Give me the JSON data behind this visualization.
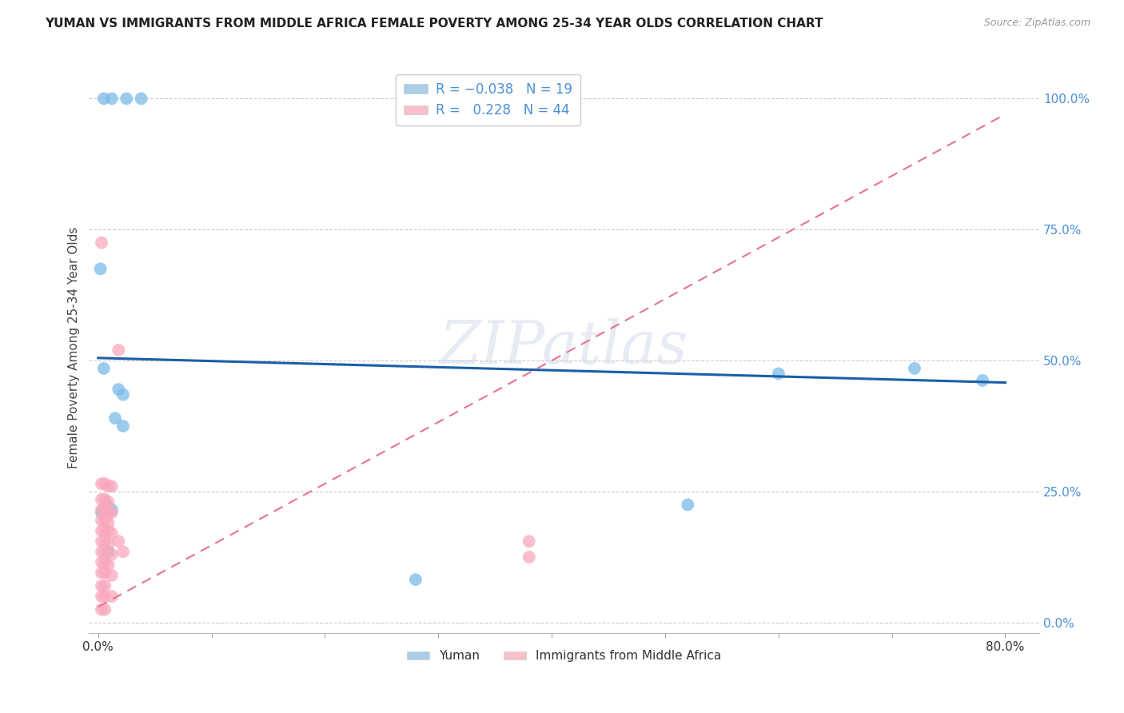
{
  "title": "YUMAN VS IMMIGRANTS FROM MIDDLE AFRICA FEMALE POVERTY AMONG 25-34 YEAR OLDS CORRELATION CHART",
  "source": "Source: ZipAtlas.com",
  "ylabel": "Female Poverty Among 25-34 Year Olds",
  "xlim": [
    -0.008,
    0.83
  ],
  "ylim": [
    -0.02,
    1.07
  ],
  "yticks": [
    0.0,
    0.25,
    0.5,
    0.75,
    1.0
  ],
  "ytick_labels": [
    "0.0%",
    "25.0%",
    "50.0%",
    "75.0%",
    "100.0%"
  ],
  "xticks": [
    0.0,
    0.1,
    0.2,
    0.3,
    0.4,
    0.5,
    0.6,
    0.7,
    0.8
  ],
  "xtick_labels": [
    "0.0%",
    "",
    "",
    "",
    "",
    "",
    "",
    "",
    "80.0%"
  ],
  "yuman_color": "#7bbce8",
  "immigrants_color": "#f9a8bc",
  "yuman_line_color": "#1a5fa8",
  "immigrants_line_color": "#e8748c",
  "yuman_legend_color": "#aacde8",
  "immigrants_legend_color": "#f9c0cc",
  "watermark": "ZIPatlas",
  "yuman_line": [
    0.0,
    0.505,
    0.8,
    0.458
  ],
  "immigrants_line": [
    0.0,
    0.03,
    0.8,
    0.97
  ],
  "yuman_points": [
    [
      0.005,
      1.0
    ],
    [
      0.012,
      1.0
    ],
    [
      0.025,
      1.0
    ],
    [
      0.038,
      1.0
    ],
    [
      0.002,
      0.675
    ],
    [
      0.018,
      0.445
    ],
    [
      0.022,
      0.435
    ],
    [
      0.015,
      0.39
    ],
    [
      0.022,
      0.375
    ],
    [
      0.005,
      0.485
    ],
    [
      0.6,
      0.475
    ],
    [
      0.72,
      0.485
    ],
    [
      0.78,
      0.462
    ],
    [
      0.52,
      0.225
    ],
    [
      0.007,
      0.225
    ],
    [
      0.012,
      0.215
    ],
    [
      0.009,
      0.135
    ],
    [
      0.28,
      0.082
    ],
    [
      0.003,
      0.21
    ]
  ],
  "immigrants_points": [
    [
      0.003,
      0.725
    ],
    [
      0.018,
      0.52
    ],
    [
      0.003,
      0.265
    ],
    [
      0.006,
      0.265
    ],
    [
      0.009,
      0.26
    ],
    [
      0.012,
      0.26
    ],
    [
      0.003,
      0.235
    ],
    [
      0.006,
      0.235
    ],
    [
      0.009,
      0.23
    ],
    [
      0.003,
      0.215
    ],
    [
      0.006,
      0.215
    ],
    [
      0.009,
      0.21
    ],
    [
      0.012,
      0.21
    ],
    [
      0.003,
      0.195
    ],
    [
      0.006,
      0.195
    ],
    [
      0.009,
      0.19
    ],
    [
      0.003,
      0.175
    ],
    [
      0.006,
      0.175
    ],
    [
      0.009,
      0.175
    ],
    [
      0.012,
      0.17
    ],
    [
      0.003,
      0.155
    ],
    [
      0.006,
      0.155
    ],
    [
      0.009,
      0.15
    ],
    [
      0.003,
      0.135
    ],
    [
      0.006,
      0.135
    ],
    [
      0.012,
      0.13
    ],
    [
      0.003,
      0.115
    ],
    [
      0.006,
      0.115
    ],
    [
      0.009,
      0.11
    ],
    [
      0.003,
      0.095
    ],
    [
      0.006,
      0.095
    ],
    [
      0.012,
      0.09
    ],
    [
      0.003,
      0.07
    ],
    [
      0.006,
      0.07
    ],
    [
      0.003,
      0.05
    ],
    [
      0.006,
      0.05
    ],
    [
      0.012,
      0.05
    ],
    [
      0.003,
      0.025
    ],
    [
      0.006,
      0.025
    ],
    [
      0.018,
      0.155
    ],
    [
      0.022,
      0.135
    ],
    [
      0.38,
      0.155
    ],
    [
      0.38,
      0.125
    ]
  ]
}
